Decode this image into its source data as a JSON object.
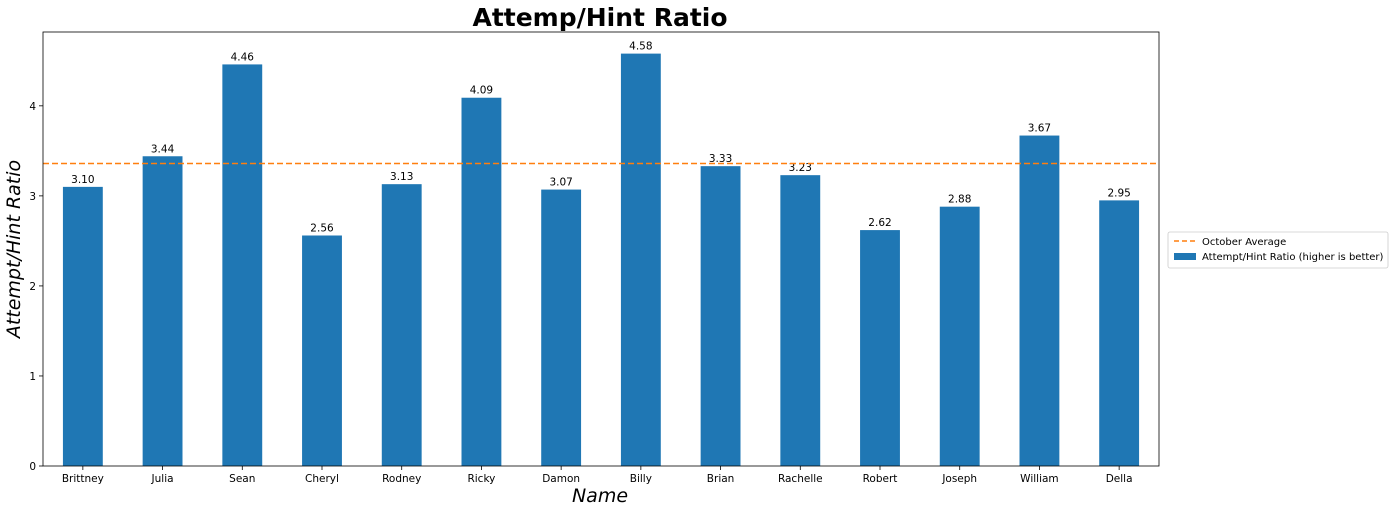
{
  "chart_data": {
    "type": "bar",
    "title": "Attemp/Hint Ratio",
    "xlabel": "Name",
    "ylabel": "Attempt/Hint Ratio",
    "categories": [
      "Brittney",
      "Julia",
      "Sean",
      "Cheryl",
      "Rodney",
      "Ricky",
      "Damon",
      "Billy",
      "Brian",
      "Rachelle",
      "Robert",
      "Joseph",
      "William",
      "Della"
    ],
    "series": [
      {
        "name": "Attempt/Hint Ratio (higher is better)",
        "color": "#1f77b4",
        "values": [
          3.1,
          3.44,
          4.46,
          2.56,
          3.13,
          4.09,
          3.07,
          4.58,
          3.33,
          3.23,
          2.62,
          2.88,
          3.67,
          2.95
        ],
        "labels": [
          "3.10",
          "3.44",
          "4.46",
          "2.56",
          "3.13",
          "4.09",
          "3.07",
          "4.58",
          "3.33",
          "3.23",
          "2.62",
          "2.88",
          "3.67",
          "2.95"
        ]
      }
    ],
    "reference_line": {
      "name": "October Average",
      "value": 3.36,
      "color": "#ff7f0e",
      "style": "dashed"
    },
    "ylim": [
      0,
      4.82
    ],
    "yticks": [
      "0",
      "1",
      "2",
      "3",
      "4"
    ],
    "grid": false,
    "legend_position": "right"
  }
}
